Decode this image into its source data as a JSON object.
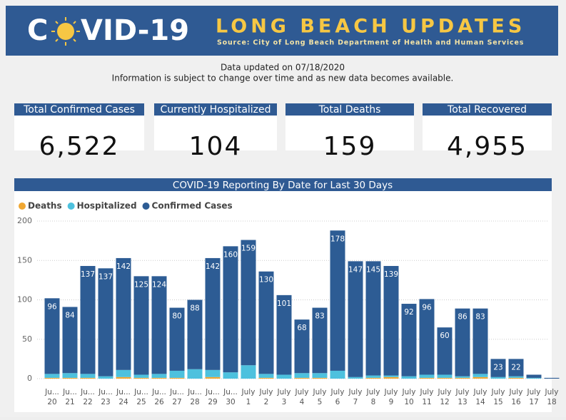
{
  "header": {
    "logo_left": "C",
    "logo_right": "VID-19",
    "title": "LONG BEACH UPDATES",
    "source": "Source: City of Long Beach Department of Health and Human Services"
  },
  "notice": [
    "Data updated on 07/18/2020",
    "Information is subject to change over time and as new data becomes available."
  ],
  "cards": [
    {
      "label": "Total Confirmed Cases",
      "value": "6,522"
    },
    {
      "label": "Currently Hospitalized",
      "value": "104"
    },
    {
      "label": "Total Deaths",
      "value": "159"
    },
    {
      "label": "Total Recovered",
      "value": "4,955"
    }
  ],
  "chart_data": {
    "type": "stacked_bar",
    "title": "COVID-19 Reporting By Date for Last 30 Days",
    "categories": [
      [
        "Ju...",
        "20"
      ],
      [
        "Ju...",
        "21"
      ],
      [
        "Ju...",
        "22"
      ],
      [
        "Ju...",
        "23"
      ],
      [
        "Ju...",
        "24"
      ],
      [
        "Ju...",
        "25"
      ],
      [
        "Ju...",
        "26"
      ],
      [
        "Ju...",
        "27"
      ],
      [
        "Ju...",
        "28"
      ],
      [
        "Ju...",
        "29"
      ],
      [
        "Ju...",
        "30"
      ],
      [
        "July",
        "1"
      ],
      [
        "July",
        "2"
      ],
      [
        "July",
        "3"
      ],
      [
        "July",
        "4"
      ],
      [
        "July",
        "5"
      ],
      [
        "July",
        "6"
      ],
      [
        "July",
        "7"
      ],
      [
        "July",
        "8"
      ],
      [
        "July",
        "9"
      ],
      [
        "July",
        "10"
      ],
      [
        "July",
        "11"
      ],
      [
        "July",
        "12"
      ],
      [
        "July",
        "13"
      ],
      [
        "July",
        "14"
      ],
      [
        "July",
        "15"
      ],
      [
        "July",
        "16"
      ],
      [
        "July",
        "17"
      ],
      [
        "July",
        "18"
      ]
    ],
    "series": [
      {
        "name": "Deaths",
        "color": "#f0a732",
        "values": [
          1,
          1,
          1,
          0,
          2,
          1,
          1,
          1,
          0,
          2,
          0,
          0,
          1,
          0,
          1,
          1,
          0,
          0,
          1,
          2,
          0,
          1,
          1,
          1,
          2,
          0,
          1,
          0,
          0
        ]
      },
      {
        "name": "Hospitalized",
        "color": "#4dc1de",
        "values": [
          5,
          6,
          5,
          3,
          9,
          4,
          5,
          9,
          12,
          9,
          8,
          17,
          5,
          5,
          6,
          6,
          10,
          2,
          3,
          2,
          3,
          4,
          4,
          2,
          4,
          2,
          2,
          1,
          0
        ]
      },
      {
        "name": "Confirmed Cases",
        "color": "#2d5c94",
        "values": [
          96,
          84,
          137,
          137,
          142,
          125,
          124,
          80,
          88,
          142,
          160,
          159,
          130,
          101,
          68,
          83,
          178,
          147,
          145,
          139,
          92,
          96,
          60,
          86,
          83,
          23,
          22,
          4,
          1
        ],
        "value_labels": [
          "96",
          "84",
          "137",
          "137",
          "142",
          "125",
          "124",
          "80",
          "88",
          "142",
          "160",
          "159",
          "130",
          "101",
          "68",
          "83",
          "178",
          "147",
          "145",
          "139",
          "92",
          "96",
          "60",
          "86",
          "83",
          "23",
          "22",
          null,
          null
        ]
      }
    ],
    "ylim": [
      0,
      200
    ],
    "yticks": [
      0,
      50,
      100,
      150,
      200
    ],
    "grid": true
  }
}
